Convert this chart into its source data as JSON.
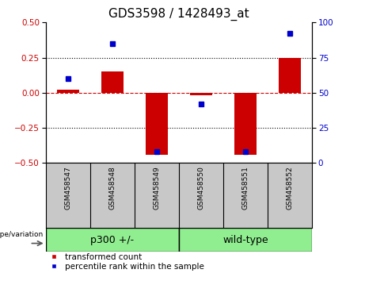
{
  "title": "GDS3598 / 1428493_at",
  "samples": [
    "GSM458547",
    "GSM458548",
    "GSM458549",
    "GSM458550",
    "GSM458551",
    "GSM458552"
  ],
  "bar_values": [
    0.02,
    0.15,
    -0.44,
    -0.02,
    -0.44,
    0.25
  ],
  "percentile_values": [
    60,
    85,
    8,
    42,
    8,
    92
  ],
  "bar_color": "#CC0000",
  "dot_color": "#0000CC",
  "ylim_left": [
    -0.5,
    0.5
  ],
  "ylim_right": [
    0,
    100
  ],
  "yticks_left": [
    -0.5,
    -0.25,
    0.0,
    0.25,
    0.5
  ],
  "yticks_right": [
    0,
    25,
    50,
    75,
    100
  ],
  "dotted_lines": [
    -0.25,
    0.25
  ],
  "background_color": "#ffffff",
  "legend_red_label": "transformed count",
  "legend_blue_label": "percentile rank within the sample",
  "genotype_label": "genotype/variation",
  "group_label_1": "p300 +/-",
  "group_label_2": "wild-type",
  "group_color": "#90EE90",
  "tick_bg_color": "#C8C8C8",
  "title_fontsize": 11,
  "tick_fontsize": 7.5,
  "label_fontsize": 8,
  "legend_fontsize": 7.5,
  "group_fontsize": 9
}
